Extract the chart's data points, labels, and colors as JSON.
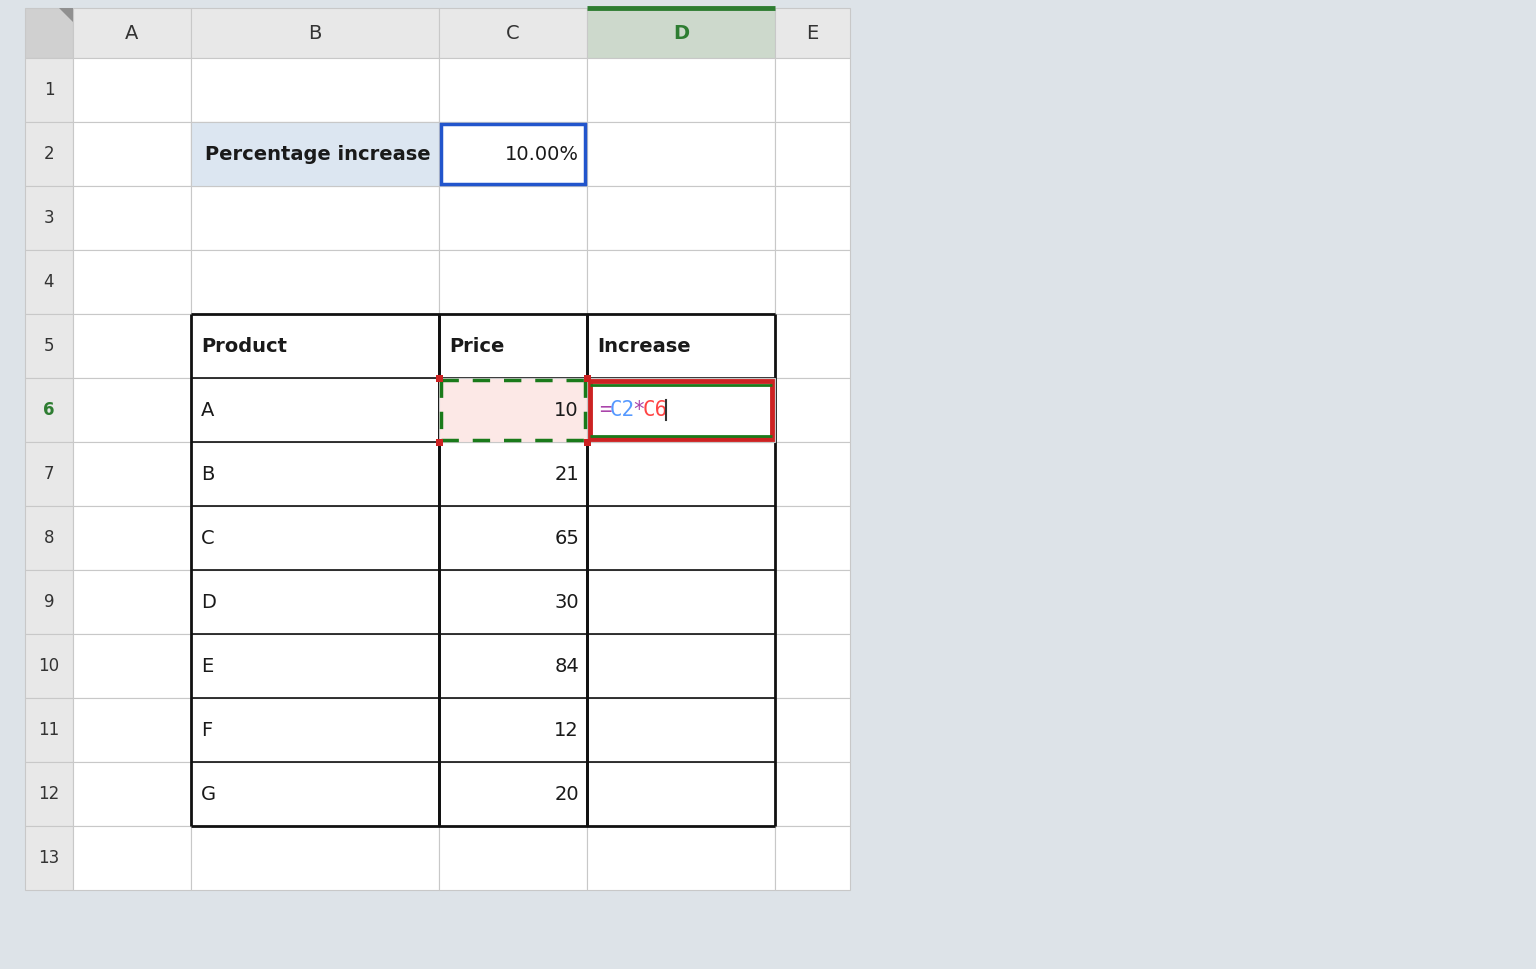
{
  "bg_color": "#dde3e8",
  "cell_bg": "#ffffff",
  "row_header_bg": "#e8e8e8",
  "col_header_bg": "#e8e8e8",
  "col_header_D_bg": "#cdd9cc",
  "corner_bg": "#d0d0d0",
  "row_nums": [
    "1",
    "2",
    "3",
    "4",
    "5",
    "6",
    "7",
    "8",
    "9",
    "10",
    "11",
    "12",
    "13"
  ],
  "col_labels": [
    "A",
    "B",
    "C",
    "D",
    "E"
  ],
  "percentage_increase_label": "Percentage increase",
  "percentage_increase_value": "10.00%",
  "products": [
    "A",
    "B",
    "C",
    "D",
    "E",
    "F",
    "G"
  ],
  "prices": [
    "10",
    "21",
    "65",
    "30",
    "84",
    "12",
    "20"
  ],
  "product_col_header": "Product",
  "price_col_header": "Price",
  "increase_col_header": "Increase",
  "b2_bg": "#dce6f1",
  "c2_border_color": "#2255cc",
  "c6_bg": "#fce8e6",
  "c6_dash_color": "#1a7a1a",
  "c6_corner_color": "#cc2222",
  "d6_border_color": "#cc2222",
  "d6_green_line_color": "#1a7a1a",
  "formula_eq_color": "#aa44aa",
  "formula_c2_color": "#5599ff",
  "formula_star_color": "#aa44aa",
  "formula_c6_color": "#ff4444",
  "row6_num_color": "#2e7d32",
  "table_border_color": "#111111",
  "grid_color": "#c8c8c8",
  "D_header_top_color": "#2e7d32",
  "text_color": "#1a1a1a"
}
